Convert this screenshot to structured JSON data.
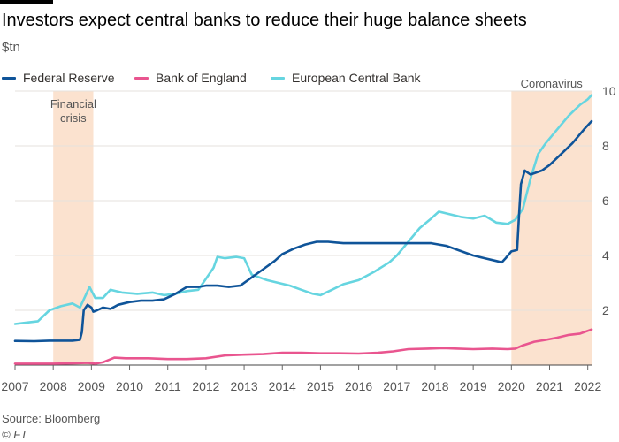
{
  "chart_data": {
    "type": "line",
    "title": "Investors expect central banks to reduce their huge balance sheets",
    "unit_label": "$tn",
    "source": "Source: Bloomberg",
    "copyright": "© FT",
    "grid": true,
    "legend_position": "top-left",
    "xlim": [
      2007,
      2022.1
    ],
    "ylim": [
      0,
      10
    ],
    "y_ticks": [
      2,
      4,
      6,
      8,
      10
    ],
    "x_ticks": [
      2007,
      2008,
      2009,
      2010,
      2011,
      2012,
      2013,
      2014,
      2015,
      2016,
      2017,
      2018,
      2019,
      2020,
      2021,
      2022
    ],
    "shaded_periods": [
      {
        "label": "Financial crisis",
        "label_lines": [
          "Financial",
          "crisis"
        ],
        "start": 2008.0,
        "end": 2009.05
      },
      {
        "label": "Coronavirus",
        "label_lines": [
          "Coronavirus"
        ],
        "start": 2020.0,
        "end": 2022.1
      }
    ],
    "series": [
      {
        "name": "Federal Reserve",
        "color": "#0f5499",
        "points": [
          [
            2007.0,
            0.88
          ],
          [
            2007.5,
            0.87
          ],
          [
            2007.9,
            0.89
          ],
          [
            2008.5,
            0.89
          ],
          [
            2008.7,
            0.92
          ],
          [
            2008.75,
            1.2
          ],
          [
            2008.8,
            2.0
          ],
          [
            2008.9,
            2.2
          ],
          [
            2009.0,
            2.1
          ],
          [
            2009.05,
            1.95
          ],
          [
            2009.15,
            2.0
          ],
          [
            2009.3,
            2.1
          ],
          [
            2009.5,
            2.05
          ],
          [
            2009.7,
            2.2
          ],
          [
            2010.0,
            2.3
          ],
          [
            2010.3,
            2.35
          ],
          [
            2010.6,
            2.35
          ],
          [
            2010.9,
            2.4
          ],
          [
            2011.2,
            2.6
          ],
          [
            2011.5,
            2.85
          ],
          [
            2011.8,
            2.85
          ],
          [
            2012.0,
            2.9
          ],
          [
            2012.3,
            2.9
          ],
          [
            2012.6,
            2.85
          ],
          [
            2012.9,
            2.9
          ],
          [
            2013.2,
            3.2
          ],
          [
            2013.5,
            3.5
          ],
          [
            2013.8,
            3.8
          ],
          [
            2014.0,
            4.05
          ],
          [
            2014.3,
            4.25
          ],
          [
            2014.6,
            4.4
          ],
          [
            2014.9,
            4.5
          ],
          [
            2015.2,
            4.5
          ],
          [
            2015.6,
            4.45
          ],
          [
            2016.0,
            4.45
          ],
          [
            2016.5,
            4.45
          ],
          [
            2017.0,
            4.45
          ],
          [
            2017.5,
            4.45
          ],
          [
            2017.9,
            4.45
          ],
          [
            2018.3,
            4.35
          ],
          [
            2018.7,
            4.15
          ],
          [
            2019.0,
            4.0
          ],
          [
            2019.3,
            3.9
          ],
          [
            2019.6,
            3.8
          ],
          [
            2019.75,
            3.75
          ],
          [
            2019.85,
            3.9
          ],
          [
            2020.0,
            4.15
          ],
          [
            2020.15,
            4.2
          ],
          [
            2020.2,
            5.5
          ],
          [
            2020.25,
            6.6
          ],
          [
            2020.35,
            7.1
          ],
          [
            2020.5,
            6.95
          ],
          [
            2020.8,
            7.1
          ],
          [
            2021.0,
            7.3
          ],
          [
            2021.3,
            7.7
          ],
          [
            2021.6,
            8.1
          ],
          [
            2021.9,
            8.6
          ],
          [
            2022.1,
            8.9
          ]
        ]
      },
      {
        "name": "Bank of England",
        "color": "#e9558f",
        "points": [
          [
            2007.0,
            0.05
          ],
          [
            2007.5,
            0.05
          ],
          [
            2008.0,
            0.05
          ],
          [
            2008.5,
            0.06
          ],
          [
            2008.9,
            0.08
          ],
          [
            2009.1,
            0.05
          ],
          [
            2009.3,
            0.1
          ],
          [
            2009.6,
            0.27
          ],
          [
            2009.9,
            0.25
          ],
          [
            2010.5,
            0.25
          ],
          [
            2011.0,
            0.22
          ],
          [
            2011.5,
            0.22
          ],
          [
            2012.0,
            0.25
          ],
          [
            2012.5,
            0.35
          ],
          [
            2013.0,
            0.38
          ],
          [
            2013.5,
            0.4
          ],
          [
            2014.0,
            0.45
          ],
          [
            2014.5,
            0.45
          ],
          [
            2015.0,
            0.43
          ],
          [
            2015.5,
            0.43
          ],
          [
            2016.0,
            0.42
          ],
          [
            2016.5,
            0.45
          ],
          [
            2016.9,
            0.5
          ],
          [
            2017.3,
            0.58
          ],
          [
            2017.8,
            0.6
          ],
          [
            2018.2,
            0.62
          ],
          [
            2018.6,
            0.6
          ],
          [
            2019.0,
            0.58
          ],
          [
            2019.5,
            0.6
          ],
          [
            2019.9,
            0.58
          ],
          [
            2020.1,
            0.6
          ],
          [
            2020.3,
            0.72
          ],
          [
            2020.6,
            0.85
          ],
          [
            2020.9,
            0.92
          ],
          [
            2021.2,
            1.0
          ],
          [
            2021.5,
            1.1
          ],
          [
            2021.8,
            1.15
          ],
          [
            2022.1,
            1.3
          ]
        ]
      },
      {
        "name": "European Central Bank",
        "color": "#66d5e0",
        "points": [
          [
            2007.0,
            1.5
          ],
          [
            2007.3,
            1.55
          ],
          [
            2007.6,
            1.6
          ],
          [
            2007.9,
            2.0
          ],
          [
            2008.2,
            2.15
          ],
          [
            2008.5,
            2.25
          ],
          [
            2008.7,
            2.1
          ],
          [
            2008.85,
            2.55
          ],
          [
            2008.95,
            2.85
          ],
          [
            2009.1,
            2.45
          ],
          [
            2009.3,
            2.45
          ],
          [
            2009.5,
            2.75
          ],
          [
            2009.8,
            2.65
          ],
          [
            2010.2,
            2.6
          ],
          [
            2010.6,
            2.65
          ],
          [
            2010.9,
            2.55
          ],
          [
            2011.2,
            2.6
          ],
          [
            2011.5,
            2.7
          ],
          [
            2011.8,
            2.75
          ],
          [
            2012.0,
            3.15
          ],
          [
            2012.2,
            3.55
          ],
          [
            2012.3,
            3.95
          ],
          [
            2012.5,
            3.9
          ],
          [
            2012.8,
            3.95
          ],
          [
            2013.0,
            3.9
          ],
          [
            2013.2,
            3.3
          ],
          [
            2013.6,
            3.1
          ],
          [
            2013.9,
            3.0
          ],
          [
            2014.2,
            2.9
          ],
          [
            2014.5,
            2.75
          ],
          [
            2014.8,
            2.6
          ],
          [
            2015.0,
            2.55
          ],
          [
            2015.3,
            2.75
          ],
          [
            2015.6,
            2.95
          ],
          [
            2016.0,
            3.1
          ],
          [
            2016.4,
            3.4
          ],
          [
            2016.8,
            3.75
          ],
          [
            2017.0,
            4.0
          ],
          [
            2017.3,
            4.5
          ],
          [
            2017.6,
            5.0
          ],
          [
            2017.9,
            5.35
          ],
          [
            2018.1,
            5.6
          ],
          [
            2018.4,
            5.5
          ],
          [
            2018.7,
            5.4
          ],
          [
            2019.0,
            5.35
          ],
          [
            2019.3,
            5.45
          ],
          [
            2019.6,
            5.2
          ],
          [
            2019.9,
            5.15
          ],
          [
            2020.1,
            5.3
          ],
          [
            2020.3,
            5.7
          ],
          [
            2020.5,
            6.8
          ],
          [
            2020.7,
            7.7
          ],
          [
            2020.9,
            8.1
          ],
          [
            2021.2,
            8.6
          ],
          [
            2021.5,
            9.1
          ],
          [
            2021.8,
            9.5
          ],
          [
            2022.0,
            9.7
          ],
          [
            2022.1,
            9.85
          ]
        ]
      }
    ]
  }
}
